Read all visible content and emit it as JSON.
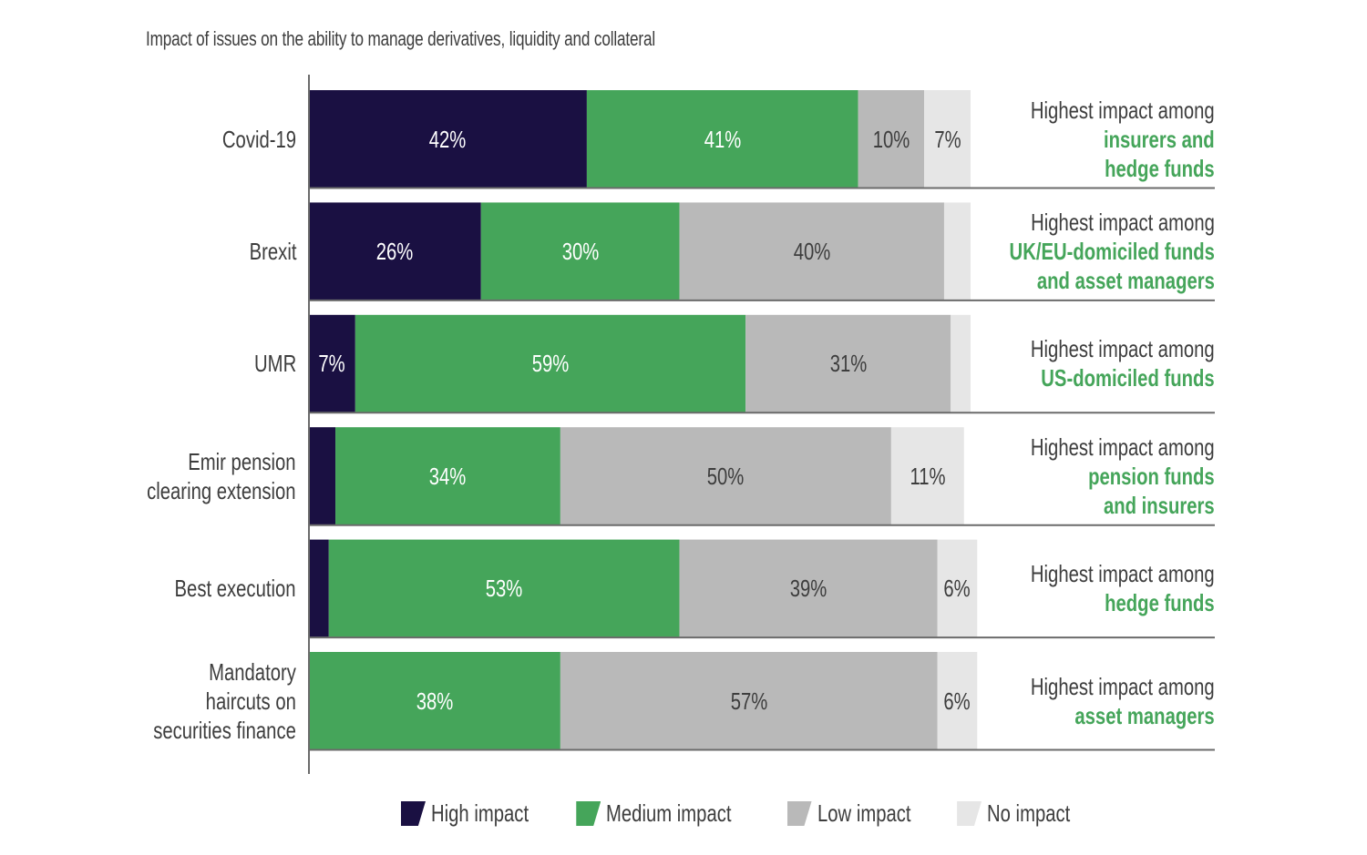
{
  "chart_data": {
    "type": "bar",
    "orientation": "horizontal-stacked-100",
    "title": "Impact of issues on the ability to manage derivatives, liquidity and collateral",
    "xlabel": "",
    "ylabel": "",
    "xlim": [
      0,
      100
    ],
    "grid": false,
    "legend_position": "bottom",
    "categories": [
      "Covid-19",
      "Brexit",
      "UMR",
      "Emir pension clearing extension",
      "Best execution",
      "Mandatory haircuts on securities finance"
    ],
    "category_lines": [
      [
        "Covid-19"
      ],
      [
        "Brexit"
      ],
      [
        "UMR"
      ],
      [
        "Emir pension",
        "clearing extension"
      ],
      [
        "Best execution"
      ],
      [
        "Mandatory",
        "haircuts on",
        "securities finance"
      ]
    ],
    "series": [
      {
        "name": "High impact",
        "color": "#1a1042",
        "label_color": "#ffffff",
        "values": [
          42,
          26,
          7,
          4,
          3,
          0
        ],
        "labels": [
          "42%",
          "26%",
          "7%",
          "",
          "",
          ""
        ]
      },
      {
        "name": "Medium impact",
        "color": "#45a55a",
        "label_color": "#ffffff",
        "values": [
          41,
          30,
          59,
          34,
          53,
          38
        ],
        "labels": [
          "41%",
          "30%",
          "59%",
          "34%",
          "53%",
          "38%"
        ]
      },
      {
        "name": "Low impact",
        "color": "#b9b9b9",
        "label_color": "#3d3d3d",
        "values": [
          10,
          40,
          31,
          50,
          39,
          57
        ],
        "labels": [
          "10%",
          "40%",
          "31%",
          "50%",
          "39%",
          "57%"
        ]
      },
      {
        "name": "No impact",
        "color": "#e6e6e6",
        "label_color": "#3d3d3d",
        "values": [
          7,
          4,
          3,
          11,
          6,
          6
        ],
        "labels": [
          "7%",
          "",
          "",
          "11%",
          "6%",
          "6%"
        ]
      }
    ],
    "annotations": [
      {
        "prefix": "Highest impact among",
        "highlight": [
          "insurers and",
          "hedge funds"
        ]
      },
      {
        "prefix": "Highest impact among",
        "highlight": [
          "UK/EU-domiciled funds",
          "and asset managers"
        ]
      },
      {
        "prefix": "Highest impact among",
        "highlight": [
          "US-domiciled funds"
        ]
      },
      {
        "prefix": "Highest impact among",
        "highlight": [
          "pension funds",
          "and insurers"
        ]
      },
      {
        "prefix": "Highest impact among",
        "highlight": [
          "hedge funds"
        ]
      },
      {
        "prefix": "Highest impact among",
        "highlight": [
          "asset managers"
        ]
      }
    ]
  },
  "colors": {
    "axis": "#6b6b6b",
    "text": "#3d3d3d",
    "highlight": "#45a55a"
  }
}
